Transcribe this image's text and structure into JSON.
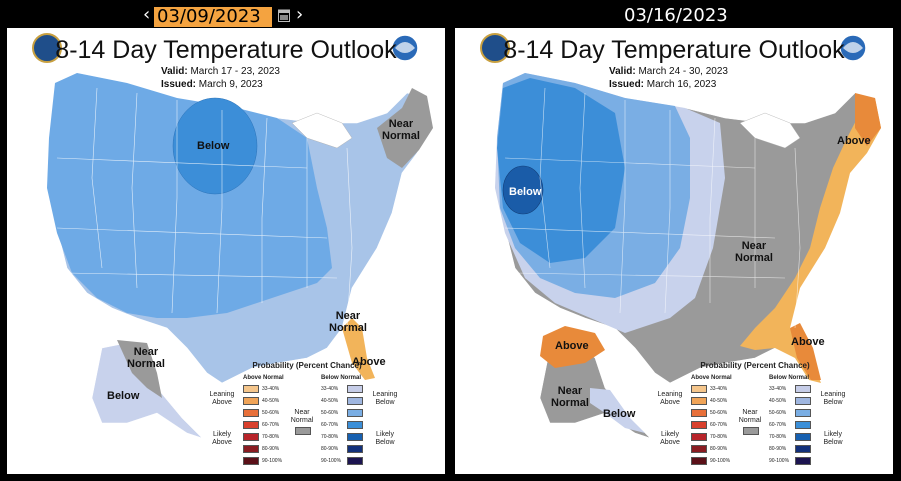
{
  "nav": {
    "prev_arrow": "‹",
    "next_arrow": "›",
    "selected_date": "03/09/2023",
    "compare_date": "03/16/2023"
  },
  "left_panel": {
    "title": "8-14 Day Temperature Outlook",
    "valid_label": "Valid:",
    "valid_value": "March 17 - 23, 2023",
    "issued_label": "Issued:",
    "issued_value": "March 9, 2023",
    "labels": {
      "below_center": "Below",
      "near_normal_ne": "Near\nNormal",
      "near_normal_se": "Near\nNormal",
      "above_fl": "Above",
      "near_normal_ak": "Near\nNormal",
      "below_ak": "Below"
    }
  },
  "right_panel": {
    "title": "8-14 Day Temperature Outlook",
    "valid_label": "Valid:",
    "valid_value": "March 24 - 30, 2023",
    "issued_label": "Issued:",
    "issued_value": "March 16, 2023",
    "labels": {
      "above_ne": "Above",
      "below_ca": "Below",
      "near_normal_center": "Near\nNormal",
      "above_se": "Above",
      "above_ak": "Above",
      "near_normal_ak": "Near\nNormal",
      "below_ak": "Below"
    }
  },
  "legend": {
    "title": "Probability (Percent Chance)",
    "above_header": "Above Normal",
    "below_header": "Below Normal",
    "near_label": "Near\nNormal",
    "leaning_above": "Leaning\nAbove",
    "likely_above": "Likely\nAbove",
    "leaning_below": "Leaning\nBelow",
    "likely_below": "Likely\nBelow",
    "ranges": [
      "33-40%",
      "40-50%",
      "50-60%",
      "60-70%",
      "70-80%",
      "80-90%",
      "90-100%"
    ],
    "above_colors": [
      "#f5c68c",
      "#f0a458",
      "#e8703a",
      "#d9402c",
      "#b8242a",
      "#8a1c22",
      "#5a1018"
    ],
    "below_colors": [
      "#c6cde8",
      "#9fb6e0",
      "#7aaee4",
      "#3b8fd8",
      "#1660b0",
      "#12307a",
      "#1c1450"
    ]
  },
  "colors": {
    "lean_below": "#a8c4e8",
    "below": "#6eaae6",
    "below_strong": "#3c8ed8",
    "below_deep": "#1a5ca8",
    "near_normal": "#9a9a9a",
    "lean_above": "#f2b45a",
    "above": "#e88a3a",
    "light_below": "#c8d2ec"
  }
}
